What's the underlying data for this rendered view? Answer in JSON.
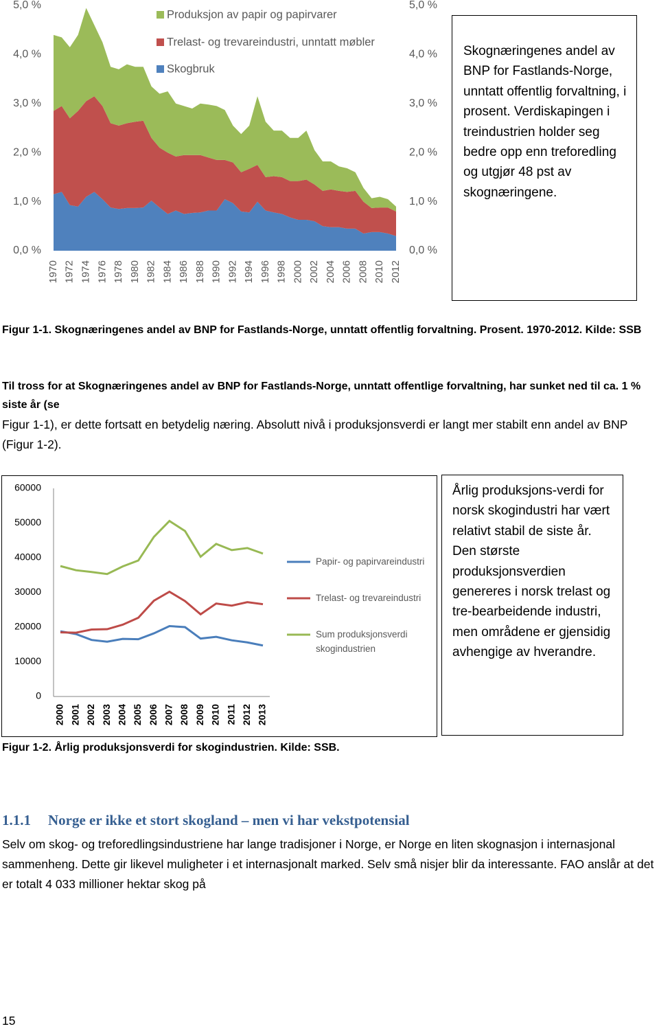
{
  "chart_data": [
    {
      "type": "area",
      "stacked": true,
      "x": [
        1970,
        1971,
        1972,
        1973,
        1974,
        1975,
        1976,
        1977,
        1978,
        1979,
        1980,
        1981,
        1982,
        1983,
        1984,
        1985,
        1986,
        1987,
        1988,
        1989,
        1990,
        1991,
        1992,
        1993,
        1994,
        1995,
        1996,
        1997,
        1998,
        1999,
        2000,
        2001,
        2002,
        2003,
        2004,
        2005,
        2006,
        2007,
        2008,
        2009,
        2010,
        2011,
        2012
      ],
      "xlim": [
        1970,
        2012
      ],
      "xticks": [
        1970,
        1972,
        1974,
        1976,
        1978,
        1980,
        1982,
        1984,
        1986,
        1988,
        1990,
        1992,
        1994,
        1996,
        1998,
        2000,
        2002,
        2004,
        2006,
        2008,
        2010,
        2012
      ],
      "ylim": [
        0,
        5
      ],
      "yticks": [
        {
          "value": 0,
          "label": "0,0 %"
        },
        {
          "value": 1,
          "label": "1,0 %"
        },
        {
          "value": 2,
          "label": "2,0 %"
        },
        {
          "value": 3,
          "label": "3,0 %"
        },
        {
          "value": 4,
          "label": "4,0 %"
        },
        {
          "value": 5,
          "label": "5,0 %"
        }
      ],
      "y2lim": [
        0,
        5
      ],
      "y2ticks": [
        {
          "value": 0,
          "label": "0,0 %"
        },
        {
          "value": 1,
          "label": "1,0 %"
        },
        {
          "value": 2,
          "label": "2,0 %"
        },
        {
          "value": 3,
          "label": "3,0 %"
        },
        {
          "value": 4,
          "label": "4,0 %"
        },
        {
          "value": 5,
          "label": "5,0 %"
        }
      ],
      "series": [
        {
          "name": "Skogbruk",
          "color": "#4f81bd",
          "values": [
            1.15,
            1.2,
            0.93,
            0.9,
            1.1,
            1.2,
            1.05,
            0.88,
            0.85,
            0.87,
            0.87,
            0.88,
            1.02,
            0.88,
            0.75,
            0.82,
            0.75,
            0.77,
            0.78,
            0.82,
            0.82,
            1.05,
            0.97,
            0.8,
            0.78,
            1.0,
            0.82,
            0.78,
            0.75,
            0.68,
            0.63,
            0.63,
            0.6,
            0.5,
            0.48,
            0.48,
            0.45,
            0.45,
            0.35,
            0.38,
            0.38,
            0.35,
            0.3
          ]
        },
        {
          "name": "Trelast- og trevareindustri, unntatt møbler",
          "color": "#c0504d",
          "values": [
            1.7,
            1.75,
            1.77,
            1.95,
            1.95,
            1.95,
            1.9,
            1.72,
            1.7,
            1.73,
            1.76,
            1.77,
            1.28,
            1.22,
            1.25,
            1.1,
            1.2,
            1.18,
            1.17,
            1.08,
            1.03,
            0.8,
            0.83,
            0.8,
            0.89,
            0.75,
            0.68,
            0.74,
            0.75,
            0.74,
            0.79,
            0.82,
            0.75,
            0.72,
            0.77,
            0.74,
            0.75,
            0.77,
            0.65,
            0.49,
            0.5,
            0.53,
            0.5
          ]
        },
        {
          "name": "Produksjon av papir og papirvarer",
          "color": "#9bbb59",
          "values": [
            1.55,
            1.4,
            1.45,
            1.55,
            1.9,
            1.45,
            1.3,
            1.15,
            1.15,
            1.2,
            1.12,
            1.1,
            1.05,
            1.1,
            1.25,
            1.08,
            1.0,
            0.95,
            1.05,
            1.08,
            1.1,
            1.02,
            0.75,
            0.78,
            0.88,
            1.4,
            1.13,
            0.93,
            0.95,
            0.88,
            0.88,
            1.0,
            0.7,
            0.6,
            0.57,
            0.5,
            0.48,
            0.38,
            0.28,
            0.2,
            0.22,
            0.17,
            0.1
          ]
        }
      ],
      "annotation": "Skognæringenes andel av BNP for Fastlands-Norge, unntatt offentlig forvaltning, i prosent. Verdiskapingen i treindustrien holder seg bedre opp enn treforedling og utgjør 48 pst av skognæringene."
    },
    {
      "type": "line",
      "categories": [
        "2000",
        "2001",
        "2002",
        "2003",
        "2004",
        "2005",
        "2006",
        "2007",
        "2008",
        "2009",
        "2010",
        "2011",
        "2012",
        "2013"
      ],
      "ylim": [
        0,
        60000
      ],
      "yticks": [
        0,
        10000,
        20000,
        30000,
        40000,
        50000,
        60000
      ],
      "series": [
        {
          "name": "Papir- og papirvareindustri",
          "color": "#4a7ebb",
          "values": [
            18800,
            18000,
            16300,
            15800,
            16600,
            16500,
            18200,
            20300,
            20000,
            16700,
            17200,
            16200,
            15600,
            14700
          ]
        },
        {
          "name": "Trelast- og trevareindustri",
          "color": "#be4b48",
          "values": [
            18500,
            18400,
            19300,
            19400,
            20700,
            22700,
            27600,
            30200,
            27500,
            23700,
            26800,
            26200,
            27200,
            26600
          ]
        },
        {
          "name": "Sum produksjonsverdi skogindustrien",
          "color": "#98b954",
          "values": [
            37600,
            36400,
            35900,
            35300,
            37500,
            39200,
            46000,
            50600,
            47700,
            40300,
            44000,
            42200,
            42800,
            41200
          ]
        }
      ],
      "annotation": "Årlig produksjons-verdi for norsk skogindustri har vært relativt stabil de siste år. Den største produksjonsverdien genereres i norsk trelast og tre-bearbeidende industri, men områdene er gjensidig avhengige av hverandre."
    }
  ],
  "figure_1_caption": "Figur 1-1. Skognæringenes andel av BNP for Fastlands-Norge, unntatt offentlig forvaltning. Prosent. 1970-2012. Kilde: SSB",
  "paragraph_1": {
    "bold": "Til tross for at Skognæringenes andel av BNP for Fastlands-Norge, unntatt offentlige forvaltning, har sunket ned til ca. 1 % siste år (se",
    "normal": "Figur 1-1), er dette fortsatt en betydelig næring. Absolutt nivå i produksjonsverdi er langt mer stabilt enn andel av BNP (Figur 1-2)."
  },
  "figure_2_caption": "Figur 1-2. Årlig produksjonsverdi for skogindustrien. Kilde: SSB.",
  "section": {
    "number": "1.1.1",
    "title": "Norge er ikke et stort skogland – men vi har vekstpotensial",
    "body": "Selv om skog- og treforedlingsindustriene har lange tradisjoner i Norge, er Norge en liten skognasjon i internasjonal sammenheng. Dette gir likevel muligheter i et internasjonalt marked. Selv små nisjer blir da interessante. FAO anslår at det er totalt 4 033 millioner hektar skog på"
  },
  "page_number": "15"
}
